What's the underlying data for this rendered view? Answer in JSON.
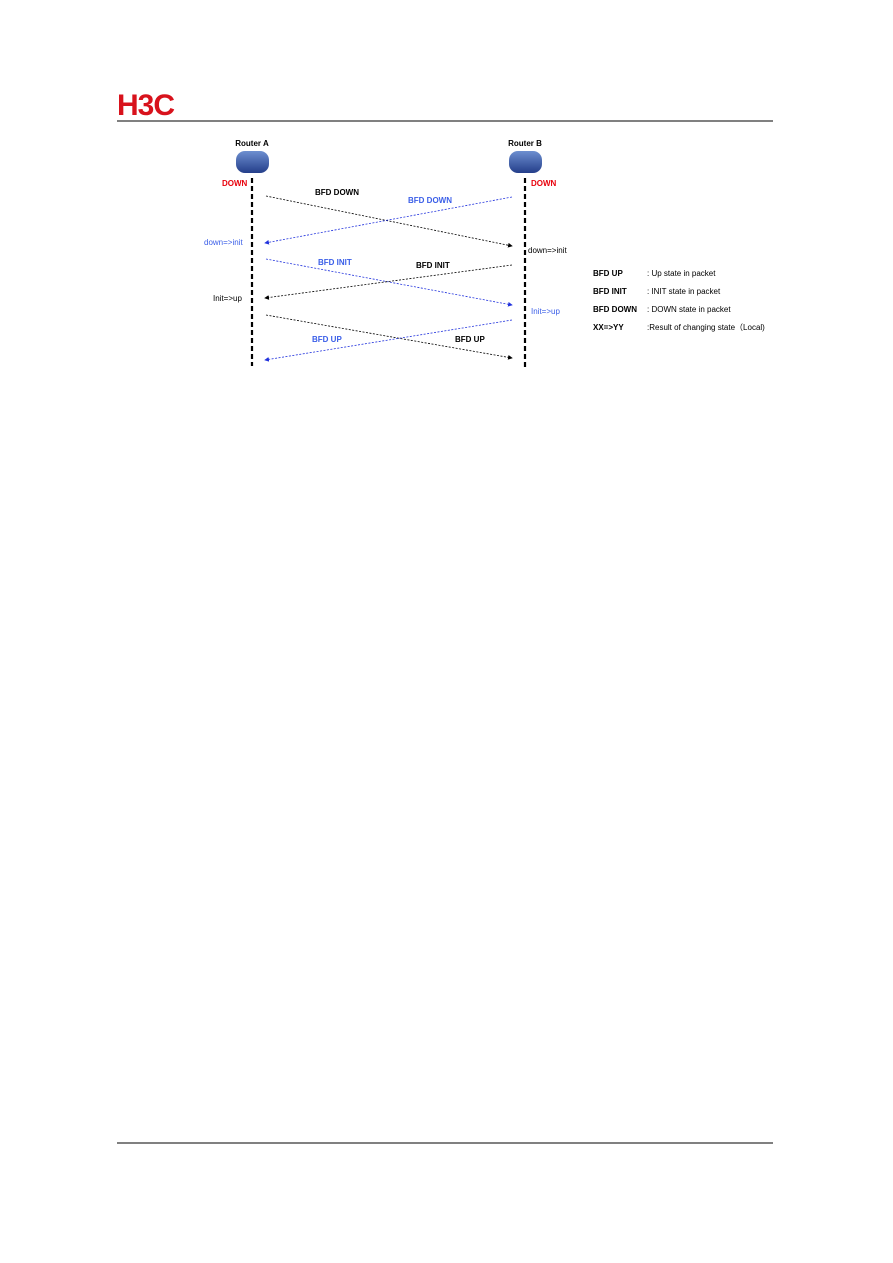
{
  "header": {
    "logo": "H3C"
  },
  "nodes": [
    {
      "label": "Router A",
      "state": "DOWN"
    },
    {
      "label": "Router B",
      "state": "DOWN"
    }
  ],
  "messages": [
    {
      "label": "BFD DOWN"
    },
    {
      "label": "BFD DOWN"
    },
    {
      "label": "BFD INIT"
    },
    {
      "label": "BFD INIT"
    },
    {
      "label": "BFD UP"
    },
    {
      "label": "BFD UP"
    }
  ],
  "state_changes": [
    {
      "label": "down=>init"
    },
    {
      "label": "down=>init"
    },
    {
      "label": "Init=>up"
    },
    {
      "label": "Init=>up"
    }
  ],
  "legend": [
    {
      "term": "BFD UP",
      "description": ": Up state in packet"
    },
    {
      "term": "BFD INIT",
      "description": ": INIT state in packet"
    },
    {
      "term": "BFD DOWN",
      "description": ": DOWN state in packet"
    },
    {
      "term": "XX=>YY",
      "description": ":Result of changing state（Local)"
    }
  ]
}
